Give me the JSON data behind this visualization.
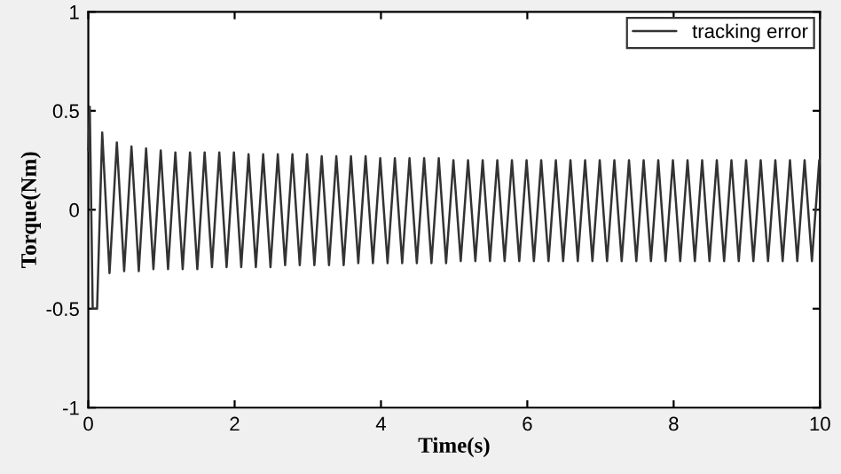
{
  "chart_data": {
    "type": "line",
    "xlabel": "Time(s)",
    "ylabel": "Torque(Nm)",
    "xlim": [
      0,
      10
    ],
    "xticks": [
      0,
      2,
      4,
      6,
      8,
      10
    ],
    "ylim": [
      -1,
      1
    ],
    "yticks": [
      -1,
      -0.5,
      0,
      0.5,
      1
    ],
    "grid": false,
    "legend": "top right",
    "marker": "none",
    "line_style": "solid",
    "series": [
      {
        "name": "tracking error",
        "color": "#333333",
        "x": [
          0,
          0.02,
          0.06,
          0.12,
          0.19,
          0.29,
          0.39,
          0.49,
          0.59,
          0.69,
          0.79,
          0.89,
          0.99,
          1.09,
          1.19,
          1.29,
          1.39,
          1.49,
          1.59,
          1.69,
          1.79,
          1.89,
          1.99,
          2.09,
          2.19,
          2.29,
          2.39,
          2.49,
          2.59,
          2.69,
          2.79,
          2.89,
          2.99,
          3.09,
          3.19,
          3.29,
          3.39,
          3.49,
          3.59,
          3.69,
          3.79,
          3.89,
          3.99,
          4.09,
          4.19,
          4.29,
          4.39,
          4.49,
          4.59,
          4.69,
          4.79,
          4.89,
          4.99,
          5.09,
          5.19,
          5.29,
          5.39,
          5.49,
          5.59,
          5.69,
          5.79,
          5.89,
          5.99,
          6.09,
          6.19,
          6.29,
          6.39,
          6.49,
          6.59,
          6.69,
          6.79,
          6.89,
          6.99,
          7.09,
          7.19,
          7.29,
          7.39,
          7.49,
          7.59,
          7.69,
          7.79,
          7.89,
          7.99,
          8.09,
          8.19,
          8.29,
          8.39,
          8.49,
          8.59,
          8.69,
          8.79,
          8.89,
          8.99,
          9.09,
          9.19,
          9.29,
          9.39,
          9.49,
          9.59,
          9.69,
          9.79,
          9.89,
          9.99
        ],
        "values": [
          0.3,
          0.52,
          -0.5,
          -0.5,
          0.39,
          -0.32,
          0.34,
          -0.31,
          0.32,
          -0.31,
          0.31,
          -0.3,
          0.3,
          -0.3,
          0.29,
          -0.3,
          0.29,
          -0.3,
          0.29,
          -0.29,
          0.29,
          -0.29,
          0.29,
          -0.29,
          0.28,
          -0.29,
          0.28,
          -0.29,
          0.28,
          -0.28,
          0.28,
          -0.28,
          0.28,
          -0.28,
          0.27,
          -0.28,
          0.27,
          -0.28,
          0.27,
          -0.27,
          0.27,
          -0.27,
          0.26,
          -0.27,
          0.26,
          -0.27,
          0.26,
          -0.27,
          0.26,
          -0.27,
          0.26,
          -0.27,
          0.25,
          -0.26,
          0.25,
          -0.26,
          0.25,
          -0.26,
          0.25,
          -0.26,
          0.25,
          -0.26,
          0.25,
          -0.26,
          0.25,
          -0.26,
          0.25,
          -0.26,
          0.25,
          -0.26,
          0.25,
          -0.26,
          0.25,
          -0.26,
          0.25,
          -0.26,
          0.25,
          -0.26,
          0.25,
          -0.26,
          0.25,
          -0.26,
          0.25,
          -0.26,
          0.25,
          -0.26,
          0.25,
          -0.26,
          0.25,
          -0.26,
          0.25,
          -0.26,
          0.25,
          -0.26,
          0.25,
          -0.26,
          0.25,
          -0.26,
          0.25,
          -0.26,
          0.25,
          -0.26,
          0.25
        ]
      }
    ]
  }
}
